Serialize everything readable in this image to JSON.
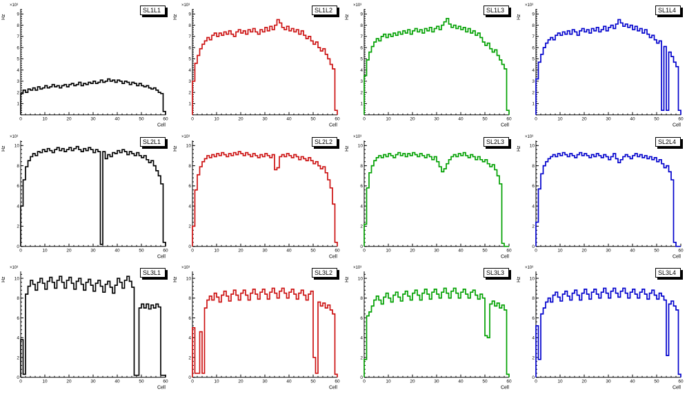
{
  "page": {
    "background": "#ffffff"
  },
  "chart_data": [
    {
      "type": "line",
      "style": "step-histogram",
      "title": "SL1L1",
      "color": "#000000",
      "xlabel": "Cell",
      "ylabel": "Hz",
      "scale_label": "×10³",
      "xlim": [
        0,
        60
      ],
      "ylim": [
        0,
        9.45
      ],
      "xticks": [
        0,
        10,
        20,
        30,
        40,
        50,
        60
      ],
      "yticks": [
        1,
        2,
        3,
        4,
        5,
        6,
        7,
        8,
        9
      ],
      "yminor": 0.2,
      "values": [
        1.9,
        2.2,
        2.0,
        2.3,
        2.2,
        2.4,
        2.2,
        2.5,
        2.3,
        2.4,
        2.6,
        2.4,
        2.5,
        2.7,
        2.5,
        2.6,
        2.4,
        2.6,
        2.7,
        2.5,
        2.7,
        2.8,
        2.6,
        2.7,
        2.9,
        2.6,
        2.8,
        2.7,
        2.9,
        2.8,
        3.0,
        2.8,
        2.9,
        3.1,
        2.9,
        3.0,
        3.2,
        3.0,
        3.1,
        2.9,
        3.1,
        3.0,
        2.8,
        3.0,
        2.9,
        2.7,
        2.9,
        2.8,
        2.6,
        2.8,
        2.6,
        2.5,
        2.6,
        2.4,
        2.3,
        2.4,
        2.2,
        2.0,
        1.9,
        0.3
      ]
    },
    {
      "type": "line",
      "style": "step-histogram",
      "title": "SL1L2",
      "color": "#cc1111",
      "xlabel": "Cell",
      "ylabel": "Hz",
      "scale_label": "×10³",
      "xlim": [
        0,
        60
      ],
      "ylim": [
        0,
        9.45
      ],
      "xticks": [
        0,
        10,
        20,
        30,
        40,
        50,
        60
      ],
      "yticks": [
        1,
        2,
        3,
        4,
        5,
        6,
        7,
        8,
        9
      ],
      "yminor": 0.2,
      "values": [
        3.0,
        4.6,
        5.3,
        5.9,
        6.3,
        6.6,
        6.9,
        6.7,
        7.1,
        7.3,
        7.0,
        7.3,
        7.1,
        7.4,
        7.2,
        7.5,
        7.2,
        7.0,
        7.4,
        7.6,
        7.3,
        7.5,
        7.2,
        7.6,
        7.4,
        7.7,
        7.4,
        7.2,
        7.6,
        7.4,
        7.8,
        7.5,
        7.9,
        7.6,
        8.0,
        8.5,
        8.2,
        7.8,
        7.6,
        7.9,
        7.5,
        7.7,
        7.4,
        7.6,
        7.2,
        7.5,
        7.1,
        6.8,
        7.0,
        6.6,
        6.3,
        6.5,
        6.0,
        5.7,
        5.9,
        5.4,
        5.0,
        4.5,
        4.1,
        0.4
      ]
    },
    {
      "type": "line",
      "style": "step-histogram",
      "title": "SL1L3",
      "color": "#00a000",
      "xlabel": "Cell",
      "ylabel": "Hz",
      "scale_label": "×10³",
      "xlim": [
        0,
        60
      ],
      "ylim": [
        0,
        9.45
      ],
      "xticks": [
        0,
        10,
        20,
        30,
        40,
        50,
        60
      ],
      "yticks": [
        1,
        2,
        3,
        4,
        5,
        6,
        7,
        8,
        9
      ],
      "yminor": 0.2,
      "values": [
        3.5,
        4.9,
        5.6,
        6.1,
        6.5,
        6.8,
        6.6,
        7.0,
        7.2,
        6.9,
        7.2,
        7.0,
        7.3,
        7.1,
        7.4,
        7.2,
        7.5,
        7.3,
        7.6,
        7.2,
        7.5,
        7.7,
        7.4,
        7.6,
        7.3,
        7.7,
        7.5,
        7.8,
        7.4,
        7.7,
        7.9,
        7.6,
        8.0,
        8.3,
        8.6,
        8.1,
        7.8,
        8.0,
        7.7,
        7.9,
        7.6,
        7.8,
        7.4,
        7.7,
        7.3,
        7.5,
        7.1,
        7.3,
        6.9,
        6.5,
        6.2,
        6.4,
        5.9,
        5.6,
        5.8,
        5.3,
        4.9,
        4.5,
        4.1,
        0.4
      ]
    },
    {
      "type": "line",
      "style": "step-histogram",
      "title": "SL1L4",
      "color": "#0000cc",
      "xlabel": "Cell",
      "ylabel": "Hz",
      "scale_label": "×10³",
      "xlim": [
        0,
        60
      ],
      "ylim": [
        0,
        9.45
      ],
      "xticks": [
        0,
        10,
        20,
        30,
        40,
        50,
        60
      ],
      "yticks": [
        1,
        2,
        3,
        4,
        5,
        6,
        7,
        8,
        9
      ],
      "yminor": 0.2,
      "values": [
        3.2,
        4.7,
        5.4,
        6.0,
        6.4,
        6.7,
        6.9,
        6.7,
        7.1,
        7.3,
        7.1,
        7.4,
        7.2,
        7.5,
        7.2,
        7.6,
        7.4,
        7.1,
        7.5,
        7.7,
        7.4,
        7.6,
        7.3,
        7.7,
        7.5,
        7.8,
        7.4,
        7.6,
        7.9,
        7.5,
        7.8,
        8.0,
        7.7,
        8.1,
        8.5,
        8.2,
        7.9,
        8.1,
        7.8,
        8.0,
        7.6,
        7.9,
        7.5,
        7.7,
        7.3,
        7.6,
        7.2,
        6.9,
        7.1,
        6.7,
        6.4,
        6.6,
        0.4,
        6.1,
        0.4,
        5.6,
        5.2,
        4.7,
        4.3,
        0.4
      ]
    },
    {
      "type": "line",
      "style": "step-histogram",
      "title": "SL2L1",
      "color": "#000000",
      "xlabel": "Cell",
      "ylabel": "Hz",
      "scale_label": "×10³",
      "xlim": [
        0,
        60
      ],
      "ylim": [
        0,
        10.5
      ],
      "xticks": [
        0,
        10,
        20,
        30,
        40,
        50,
        60
      ],
      "yticks": [
        0,
        2,
        4,
        6,
        8,
        10
      ],
      "yminor": 0.4,
      "values": [
        4.0,
        6.6,
        7.9,
        8.5,
        8.9,
        9.2,
        9.0,
        9.4,
        9.3,
        9.6,
        9.4,
        9.7,
        9.5,
        9.3,
        9.6,
        9.8,
        9.5,
        9.7,
        9.4,
        9.6,
        9.8,
        9.5,
        9.7,
        9.9,
        9.6,
        9.4,
        9.7,
        9.5,
        9.8,
        9.6,
        9.3,
        9.6,
        9.4,
        0.2,
        9.4,
        8.7,
        9.1,
        8.9,
        9.3,
        9.2,
        9.5,
        9.3,
        9.6,
        9.4,
        9.1,
        9.4,
        9.2,
        9.0,
        9.3,
        9.0,
        8.8,
        9.0,
        8.6,
        8.3,
        8.5,
        8.0,
        7.5,
        7.0,
        6.2,
        0.4
      ]
    },
    {
      "type": "line",
      "style": "step-histogram",
      "title": "SL2L2",
      "color": "#cc1111",
      "xlabel": "Cell",
      "ylabel": "Hz",
      "scale_label": "×10³",
      "xlim": [
        0,
        60
      ],
      "ylim": [
        0,
        10.5
      ],
      "xticks": [
        0,
        10,
        20,
        30,
        40,
        50,
        60
      ],
      "yticks": [
        0,
        2,
        4,
        6,
        8,
        10
      ],
      "yminor": 0.4,
      "values": [
        2.0,
        5.6,
        7.1,
        7.9,
        8.4,
        8.7,
        9.0,
        8.8,
        9.1,
        8.9,
        9.2,
        9.0,
        9.3,
        9.1,
        8.9,
        9.2,
        9.0,
        9.3,
        9.1,
        9.4,
        9.2,
        9.0,
        9.3,
        9.1,
        8.9,
        9.2,
        9.0,
        8.8,
        9.1,
        8.9,
        9.2,
        9.0,
        8.8,
        9.1,
        7.6,
        7.8,
        8.9,
        9.1,
        8.9,
        9.2,
        9.0,
        8.8,
        9.1,
        8.9,
        8.6,
        8.9,
        8.7,
        8.5,
        8.8,
        8.5,
        8.2,
        8.4,
        8.0,
        7.7,
        7.9,
        7.3,
        6.6,
        5.8,
        4.2,
        0.4
      ]
    },
    {
      "type": "line",
      "style": "step-histogram",
      "title": "SL2L3",
      "color": "#00a000",
      "xlabel": "Cell",
      "ylabel": "Hz",
      "scale_label": "×10³",
      "xlim": [
        0,
        60
      ],
      "ylim": [
        0,
        10.5
      ],
      "xticks": [
        0,
        10,
        20,
        30,
        40,
        50,
        60
      ],
      "yticks": [
        0,
        2,
        4,
        6,
        8,
        10
      ],
      "yminor": 0.4,
      "values": [
        2.2,
        5.8,
        7.3,
        8.0,
        8.5,
        8.8,
        9.0,
        8.8,
        9.1,
        8.9,
        9.2,
        9.0,
        8.8,
        9.1,
        9.3,
        9.0,
        9.2,
        8.9,
        9.2,
        9.0,
        9.3,
        9.1,
        8.9,
        9.2,
        9.0,
        8.8,
        9.1,
        8.9,
        8.6,
        8.9,
        8.4,
        7.9,
        7.4,
        7.7,
        8.2,
        8.6,
        8.9,
        9.1,
        8.9,
        9.2,
        9.0,
        9.3,
        9.0,
        8.8,
        9.1,
        8.9,
        8.6,
        8.9,
        8.6,
        8.4,
        8.6,
        8.2,
        7.9,
        8.1,
        7.6,
        7.0,
        6.2,
        0.3,
        0.0,
        0.0
      ]
    },
    {
      "type": "line",
      "style": "step-histogram",
      "title": "SL2L4",
      "color": "#0000cc",
      "xlabel": "Cell",
      "ylabel": "Hz",
      "scale_label": "×10³",
      "xlim": [
        0,
        60
      ],
      "ylim": [
        0,
        10.5
      ],
      "xticks": [
        0,
        10,
        20,
        30,
        40,
        50,
        60
      ],
      "yticks": [
        0,
        2,
        4,
        6,
        8,
        10
      ],
      "yminor": 0.4,
      "values": [
        2.4,
        5.7,
        7.2,
        8.0,
        8.4,
        8.7,
        8.9,
        9.1,
        8.9,
        9.2,
        9.0,
        9.3,
        9.1,
        8.9,
        9.2,
        9.0,
        8.8,
        9.1,
        9.3,
        9.0,
        9.2,
        9.0,
        8.8,
        9.1,
        8.9,
        9.2,
        9.0,
        8.8,
        9.1,
        8.9,
        8.6,
        8.9,
        9.2,
        8.7,
        8.3,
        8.6,
        8.9,
        9.1,
        8.9,
        8.7,
        9.0,
        9.2,
        8.9,
        9.1,
        8.8,
        9.0,
        8.7,
        8.9,
        8.6,
        8.8,
        8.4,
        8.6,
        8.2,
        7.8,
        8.0,
        7.4,
        6.6,
        0.4,
        0.0,
        0.0
      ]
    },
    {
      "type": "line",
      "style": "step-histogram",
      "title": "SL3L1",
      "color": "#000000",
      "xlabel": "Cell",
      "ylabel": "Hz",
      "scale_label": "×10³",
      "xlim": [
        0,
        60
      ],
      "ylim": [
        0,
        10.7
      ],
      "xticks": [
        0,
        10,
        20,
        30,
        40,
        50,
        60
      ],
      "yticks": [
        0,
        2,
        4,
        6,
        8,
        10
      ],
      "yminor": 0.4,
      "values": [
        3.8,
        0.3,
        8.4,
        9.2,
        9.8,
        9.4,
        8.8,
        9.6,
        10.0,
        9.5,
        8.9,
        9.7,
        10.1,
        9.6,
        9.0,
        9.8,
        10.2,
        9.6,
        9.0,
        9.8,
        10.1,
        9.5,
        8.9,
        9.7,
        10.0,
        9.4,
        8.8,
        9.6,
        9.9,
        9.3,
        8.7,
        9.5,
        9.8,
        9.2,
        8.6,
        9.4,
        9.7,
        9.1,
        8.5,
        9.3,
        10.0,
        9.6,
        9.0,
        9.8,
        10.2,
        9.7,
        9.1,
        0.2,
        0.2,
        7.0,
        7.4,
        7.0,
        7.4,
        6.9,
        7.3,
        7.0,
        7.4,
        7.1,
        0.2,
        0.2
      ]
    },
    {
      "type": "line",
      "style": "step-histogram",
      "title": "SL3L2",
      "color": "#cc1111",
      "xlabel": "Cell",
      "ylabel": "Hz",
      "scale_label": "×10³",
      "xlim": [
        0,
        60
      ],
      "ylim": [
        0,
        10.7
      ],
      "xticks": [
        0,
        10,
        20,
        30,
        40,
        50,
        60
      ],
      "yticks": [
        0,
        2,
        4,
        6,
        8,
        10
      ],
      "yminor": 0.4,
      "values": [
        5.0,
        0.4,
        0.4,
        4.6,
        0.4,
        7.0,
        7.8,
        8.2,
        7.8,
        8.5,
        8.1,
        7.6,
        8.3,
        8.7,
        8.2,
        7.7,
        8.4,
        8.8,
        8.3,
        7.8,
        8.5,
        8.8,
        8.3,
        7.8,
        8.5,
        8.9,
        8.4,
        7.9,
        8.6,
        8.9,
        8.4,
        7.9,
        8.6,
        9.0,
        8.5,
        8.0,
        8.7,
        9.0,
        8.5,
        8.0,
        8.6,
        8.9,
        8.4,
        7.9,
        8.5,
        8.8,
        8.3,
        7.8,
        8.4,
        8.7,
        2.0,
        0.4,
        7.6,
        7.2,
        7.5,
        7.0,
        7.3,
        6.8,
        6.4,
        0.3
      ]
    },
    {
      "type": "line",
      "style": "step-histogram",
      "title": "SL3L3",
      "color": "#00a000",
      "xlabel": "Cell",
      "ylabel": "Hz",
      "scale_label": "×10³",
      "xlim": [
        0,
        60
      ],
      "ylim": [
        0,
        10.7
      ],
      "xticks": [
        0,
        10,
        20,
        30,
        40,
        50,
        60
      ],
      "yticks": [
        0,
        2,
        4,
        6,
        8,
        10
      ],
      "yminor": 0.4,
      "values": [
        1.8,
        6.2,
        6.6,
        7.2,
        7.8,
        8.2,
        7.8,
        7.4,
        8.1,
        8.5,
        8.0,
        7.6,
        8.3,
        8.6,
        8.1,
        7.7,
        8.4,
        8.7,
        8.2,
        7.8,
        8.5,
        8.8,
        8.3,
        7.8,
        8.5,
        8.9,
        8.4,
        7.9,
        8.6,
        8.9,
        8.4,
        8.0,
        8.6,
        9.0,
        8.5,
        8.0,
        8.7,
        9.0,
        8.5,
        8.0,
        8.6,
        8.9,
        8.4,
        8.0,
        8.6,
        8.8,
        8.3,
        7.9,
        8.4,
        8.0,
        4.2,
        4.0,
        7.4,
        7.7,
        7.2,
        7.5,
        7.0,
        7.3,
        6.8,
        0.3
      ]
    },
    {
      "type": "line",
      "style": "step-histogram",
      "title": "SL3L4",
      "color": "#0000cc",
      "xlabel": "Cell",
      "ylabel": "Hz",
      "scale_label": "×10³",
      "xlim": [
        0,
        60
      ],
      "ylim": [
        0,
        10.7
      ],
      "xticks": [
        0,
        10,
        20,
        30,
        40,
        50,
        60
      ],
      "yticks": [
        0,
        2,
        4,
        6,
        8,
        10
      ],
      "yminor": 0.4,
      "values": [
        5.2,
        1.8,
        6.4,
        7.0,
        7.6,
        8.0,
        7.6,
        8.3,
        8.6,
        8.1,
        7.7,
        8.4,
        8.7,
        8.2,
        7.8,
        8.5,
        8.8,
        8.3,
        7.8,
        8.5,
        8.9,
        8.4,
        7.9,
        8.6,
        8.9,
        8.4,
        8.0,
        8.6,
        9.0,
        8.5,
        8.0,
        8.7,
        9.0,
        8.5,
        8.1,
        8.7,
        9.0,
        8.5,
        8.0,
        8.6,
        8.9,
        8.4,
        8.0,
        8.6,
        8.9,
        8.4,
        7.9,
        8.5,
        8.8,
        8.3,
        7.9,
        8.5,
        8.2,
        7.8,
        2.2,
        7.4,
        7.7,
        7.2,
        6.8,
        0.3
      ]
    }
  ]
}
